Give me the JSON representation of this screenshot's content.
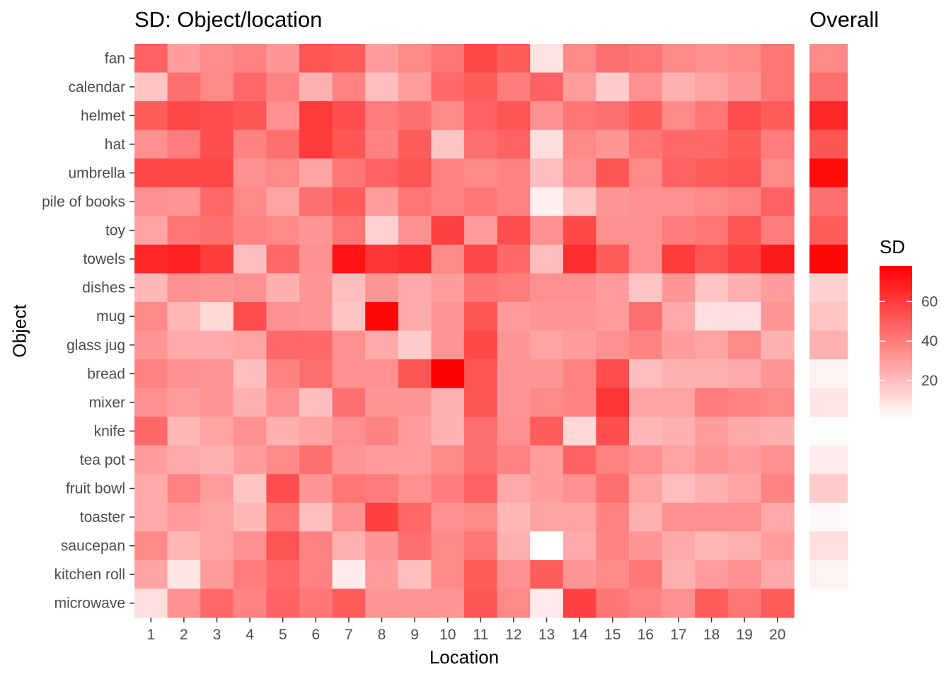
{
  "chart_data": [
    {
      "type": "heatmap",
      "title": "SD: Object/location",
      "xlabel": "Location",
      "ylabel": "Object",
      "x": [
        1,
        2,
        3,
        4,
        5,
        6,
        7,
        8,
        9,
        10,
        11,
        12,
        13,
        14,
        15,
        16,
        17,
        18,
        19,
        20
      ],
      "y": [
        "fan",
        "calendar",
        "helmet",
        "hat",
        "umbrella",
        "pile of books",
        "toy",
        "towels",
        "dishes",
        "mug",
        "glass jug",
        "bread",
        "mixer",
        "knife",
        "tea pot",
        "fruit bowl",
        "toaster",
        "saucepan",
        "kitchen roll",
        "microwave"
      ],
      "values": [
        [
          48,
          30,
          35,
          38,
          32,
          52,
          50,
          30,
          36,
          42,
          56,
          50,
          9,
          36,
          44,
          42,
          36,
          34,
          36,
          42
        ],
        [
          18,
          44,
          36,
          46,
          38,
          24,
          38,
          20,
          30,
          46,
          50,
          40,
          48,
          30,
          16,
          34,
          24,
          28,
          32,
          42
        ],
        [
          50,
          56,
          54,
          52,
          34,
          60,
          54,
          40,
          44,
          36,
          48,
          52,
          34,
          42,
          44,
          50,
          36,
          42,
          54,
          50
        ],
        [
          34,
          40,
          54,
          38,
          44,
          60,
          52,
          38,
          50,
          18,
          44,
          48,
          10,
          36,
          32,
          42,
          46,
          46,
          50,
          40
        ],
        [
          56,
          56,
          56,
          34,
          36,
          28,
          42,
          48,
          52,
          38,
          36,
          38,
          20,
          34,
          52,
          36,
          48,
          50,
          52,
          36
        ],
        [
          34,
          32,
          46,
          36,
          28,
          44,
          50,
          30,
          42,
          38,
          42,
          38,
          5,
          18,
          32,
          34,
          34,
          36,
          38,
          48
        ],
        [
          28,
          42,
          44,
          38,
          36,
          32,
          42,
          14,
          34,
          58,
          30,
          54,
          34,
          56,
          34,
          34,
          40,
          42,
          52,
          40
        ],
        [
          66,
          68,
          60,
          20,
          46,
          34,
          72,
          62,
          64,
          36,
          56,
          46,
          20,
          64,
          50,
          34,
          60,
          52,
          58,
          70
        ],
        [
          22,
          34,
          32,
          34,
          24,
          32,
          20,
          32,
          26,
          30,
          42,
          40,
          34,
          34,
          30,
          18,
          32,
          18,
          24,
          30
        ],
        [
          36,
          22,
          12,
          54,
          34,
          32,
          18,
          76,
          26,
          32,
          52,
          30,
          32,
          32,
          30,
          44,
          26,
          10,
          10,
          32
        ],
        [
          32,
          26,
          26,
          28,
          46,
          46,
          34,
          26,
          16,
          32,
          56,
          32,
          28,
          30,
          34,
          38,
          30,
          28,
          36,
          24
        ],
        [
          38,
          34,
          32,
          20,
          38,
          44,
          34,
          34,
          52,
          78,
          52,
          32,
          32,
          38,
          54,
          20,
          24,
          24,
          26,
          32
        ],
        [
          34,
          30,
          32,
          24,
          34,
          20,
          44,
          32,
          32,
          24,
          52,
          32,
          36,
          38,
          62,
          28,
          28,
          40,
          38,
          36
        ],
        [
          46,
          22,
          28,
          34,
          24,
          28,
          34,
          38,
          30,
          24,
          44,
          34,
          50,
          12,
          54,
          22,
          24,
          30,
          26,
          24
        ],
        [
          30,
          26,
          24,
          30,
          36,
          44,
          32,
          30,
          30,
          36,
          44,
          38,
          30,
          48,
          38,
          34,
          28,
          32,
          30,
          34
        ],
        [
          26,
          38,
          30,
          18,
          54,
          32,
          42,
          40,
          34,
          40,
          48,
          26,
          30,
          34,
          44,
          28,
          20,
          24,
          28,
          38
        ],
        [
          26,
          30,
          28,
          22,
          42,
          20,
          34,
          58,
          46,
          34,
          36,
          22,
          28,
          28,
          38,
          24,
          34,
          34,
          34,
          26
        ],
        [
          36,
          22,
          28,
          34,
          52,
          38,
          24,
          32,
          44,
          36,
          42,
          24,
          0,
          26,
          38,
          32,
          26,
          22,
          24,
          30
        ],
        [
          28,
          8,
          30,
          40,
          46,
          38,
          6,
          30,
          20,
          36,
          50,
          34,
          50,
          32,
          36,
          42,
          24,
          30,
          34,
          26
        ],
        [
          10,
          34,
          46,
          38,
          48,
          42,
          50,
          32,
          32,
          32,
          52,
          36,
          6,
          58,
          42,
          38,
          34,
          50,
          42,
          50
        ]
      ]
    },
    {
      "type": "heatmap",
      "title": "Overall",
      "y": [
        "fan",
        "calendar",
        "helmet",
        "hat",
        "umbrella",
        "pile of books",
        "toy",
        "towels",
        "dishes",
        "mug",
        "glass jug",
        "bread",
        "mixer",
        "knife",
        "tea pot",
        "fruit bowl",
        "toaster",
        "saucepan",
        "kitchen roll",
        "microwave"
      ],
      "values": [
        36,
        44,
        66,
        52,
        74,
        44,
        50,
        76,
        14,
        18,
        24,
        4,
        8,
        1,
        6,
        16,
        2,
        10,
        4,
        0
      ]
    }
  ],
  "legend": {
    "title": "SD",
    "ticks": [
      20,
      40,
      60
    ],
    "range": [
      0,
      78
    ],
    "colors": {
      "low": "#ffffff",
      "high": "#ff0000"
    }
  }
}
